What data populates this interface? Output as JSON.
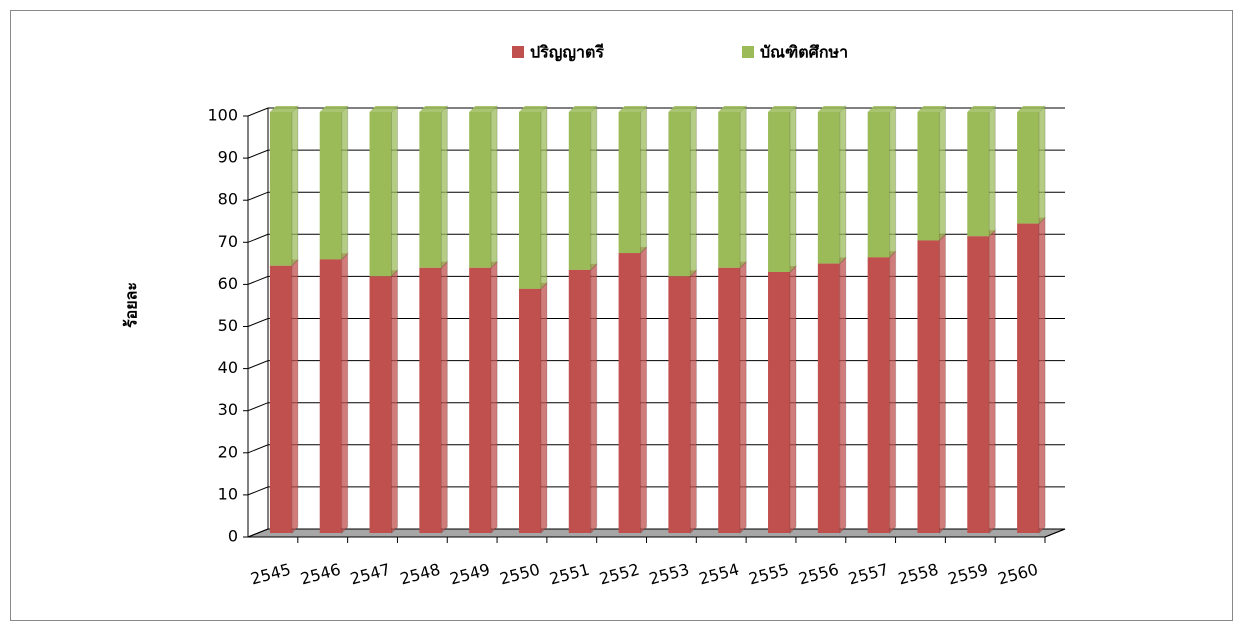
{
  "chart_data": {
    "type": "bar",
    "stacked": true,
    "y_label": "ร้อยละ",
    "categories": [
      "2545",
      "2546",
      "2547",
      "2548",
      "2549",
      "2550",
      "2551",
      "2552",
      "2553",
      "2554",
      "2555",
      "2556",
      "2557",
      "2558",
      "2559",
      "2560"
    ],
    "series": [
      {
        "name": "ปริญญาตรี",
        "color": "#c0504d",
        "values": [
          63.5,
          65,
          61,
          63,
          63,
          58,
          62.5,
          66.5,
          61,
          63,
          62,
          64,
          65.5,
          69.5,
          70.5,
          73.5
        ]
      },
      {
        "name": "บัณฑิตศึกษา",
        "color": "#9bbb59",
        "values": [
          36.5,
          35,
          39,
          37,
          37,
          42,
          37.5,
          33.5,
          39,
          37,
          38,
          36,
          34.5,
          30.5,
          29.5,
          26.5
        ]
      }
    ],
    "ylim": [
      0,
      100
    ],
    "yticks": [
      0,
      10,
      20,
      30,
      40,
      50,
      60,
      70,
      80,
      90,
      100
    ],
    "grid": true,
    "legend": "top"
  }
}
